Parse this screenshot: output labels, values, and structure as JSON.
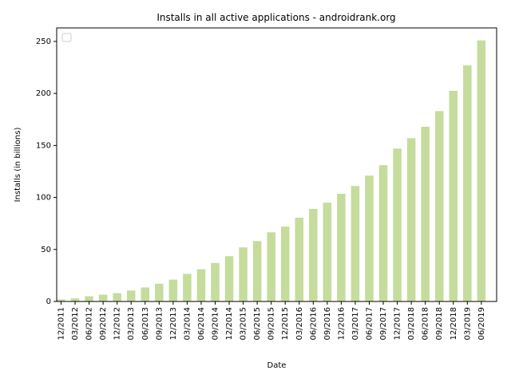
{
  "chart_data": {
    "type": "bar",
    "title": "Installs in all active applications - androidrank.org",
    "xlabel": "Date",
    "ylabel": "Installs (in billions)",
    "ylim": [
      0,
      263
    ],
    "yticks": [
      0,
      50,
      100,
      150,
      200,
      250
    ],
    "categories": [
      "12/2011",
      "03/2012",
      "06/2012",
      "09/2012",
      "12/2012",
      "03/2013",
      "06/2013",
      "09/2013",
      "12/2013",
      "03/2014",
      "06/2014",
      "09/2014",
      "12/2014",
      "03/2015",
      "06/2015",
      "09/2015",
      "12/2015",
      "03/2016",
      "06/2016",
      "09/2016",
      "12/2016",
      "03/2017",
      "06/2017",
      "09/2017",
      "12/2017",
      "03/2018",
      "06/2018",
      "09/2018",
      "12/2018",
      "03/2019",
      "06/2019"
    ],
    "values": [
      2,
      3,
      5,
      6.5,
      8,
      10.5,
      13.5,
      17,
      21,
      26.5,
      31,
      37,
      43.5,
      52,
      58,
      66.5,
      72,
      80.5,
      89,
      95,
      103.5,
      111,
      121,
      131,
      147,
      157,
      168,
      183,
      202.5,
      227,
      251
    ],
    "bar_color": "#c5dc9c",
    "grid": false,
    "legend": {
      "placement": "top-left",
      "entries": []
    }
  }
}
